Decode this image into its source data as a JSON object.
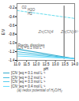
{
  "chart_data": {
    "type": "line",
    "xlabel": "pH",
    "ylabel": "E/V",
    "caption": "(a) redox potential of H₂O/H₂",
    "xlim": [
      11.0,
      14.0
    ],
    "ylim": [
      -1.4,
      -0.1
    ],
    "xticks": [
      {
        "value": 11.0,
        "label": "11.0"
      },
      11.5,
      {
        "value": 12.0,
        "label": "12.0"
      },
      12.5,
      {
        "value": 13.0,
        "label": "13.0"
      },
      13.5,
      {
        "value": 14.0,
        "label": "14.0"
      }
    ],
    "yticks": [
      -0.2,
      -0.4,
      -0.6,
      -0.8,
      {
        "value": -1.0,
        "label": "-1.0"
      },
      -1.2,
      -1.4
    ],
    "grid": false,
    "series": [
      {
        "name": "[CN⁻]eq = 0.1 mol L⁻¹",
        "color": "#33aacc",
        "x": [
          11.0,
          14.0
        ],
        "values": [
          -1.14,
          -1.36
        ]
      },
      {
        "name": "[CN⁻]eq = 0.2 mol L⁻¹",
        "color": "#44bbdd",
        "x": [
          11.0,
          14.0
        ],
        "values": [
          -1.2,
          -1.36
        ]
      },
      {
        "name": "[CN⁻]eq = 0.3 mol L⁻¹",
        "color": "#55ccee",
        "x": [
          11.0,
          14.0
        ],
        "values": [
          -1.25,
          -1.36
        ]
      },
      {
        "name": "[CN⁻]eq = 0.4 mol L⁻¹",
        "color": "#66ddff",
        "x": [
          11.0,
          14.0
        ],
        "values": [
          -1.3,
          -1.36
        ]
      }
    ],
    "dashed_line": {
      "x": [
        11.0,
        14.0
      ],
      "values": [
        -0.26,
        -0.44
      ],
      "color": "#66ddee",
      "line_style": "dashed"
    },
    "vertical_line": {
      "x": 13.45,
      "values": [
        -0.155,
        -1.36
      ],
      "color": "#555555"
    },
    "annotations": [
      {
        "text": "H2O",
        "x": 11.55,
        "y": -0.24
      },
      {
        "text": "O2",
        "x": 11.25,
        "y": -0.2
      },
      {
        "text": "H2",
        "x": 11.55,
        "y": -0.33
      },
      {
        "text": "Precip. dissolves",
        "x": 11.05,
        "y": -1.065
      },
      {
        "text": "CN = 0.1 mol L⁻¹",
        "x": 11.05,
        "y": -1.105
      }
    ],
    "region_labels": [
      {
        "text": "Zn(CN)4",
        "x": 12.5,
        "y": -0.75
      },
      {
        "text": "Zn(CN)4²⁻",
        "x": 13.75,
        "y": -0.75
      }
    ]
  }
}
